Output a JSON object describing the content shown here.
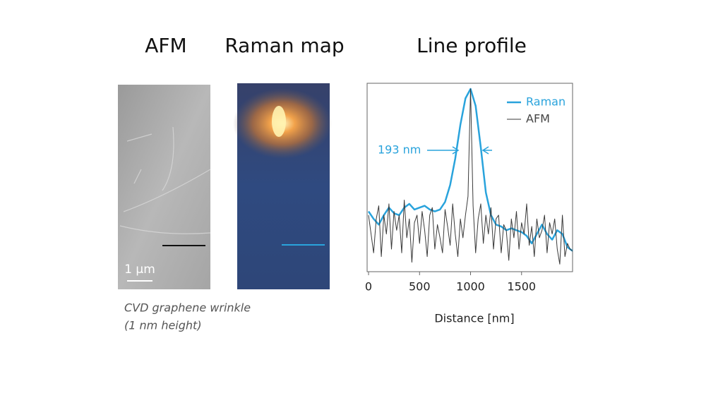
{
  "panels": {
    "afm_title": "AFM",
    "raman_title": "Raman map",
    "profile_title": "Line profile",
    "scale_bar": "1 µm",
    "caption": [
      "CVD graphene wrinkle",
      "(1 nm height)"
    ]
  },
  "chart_data": {
    "type": "line",
    "xlabel": "Distance [nm]",
    "annotation": "193 nm",
    "xlim": [
      -14,
      2000
    ],
    "ylim": [
      0,
      100
    ],
    "xticks": [
      0,
      500,
      1000,
      1500
    ],
    "series": [
      {
        "name": "Raman",
        "color": "#29a3dc",
        "x": [
          0,
          50,
          100,
          150,
          200,
          250,
          300,
          350,
          400,
          450,
          500,
          550,
          600,
          650,
          700,
          750,
          800,
          850,
          900,
          950,
          1000,
          1050,
          1100,
          1150,
          1200,
          1250,
          1300,
          1350,
          1400,
          1450,
          1500,
          1550,
          1600,
          1650,
          1700,
          1750,
          1800,
          1850,
          1900,
          1950,
          2000
        ],
        "values": [
          32,
          28,
          25,
          30,
          34,
          31,
          30,
          34,
          36,
          33,
          34,
          35,
          33,
          32,
          33,
          37,
          46,
          60,
          78,
          92,
          97,
          88,
          66,
          42,
          30,
          25,
          24,
          22,
          23,
          22,
          21,
          19,
          15,
          20,
          25,
          20,
          17,
          22,
          20,
          13,
          11
        ]
      },
      {
        "name": "AFM",
        "color": "#3a3a3a",
        "x": [
          0,
          25,
          50,
          75,
          100,
          125,
          150,
          175,
          200,
          225,
          250,
          275,
          300,
          325,
          350,
          375,
          400,
          425,
          450,
          475,
          500,
          525,
          550,
          575,
          600,
          625,
          650,
          675,
          700,
          725,
          750,
          775,
          800,
          825,
          850,
          875,
          900,
          925,
          950,
          975,
          1000,
          1025,
          1050,
          1075,
          1100,
          1125,
          1150,
          1175,
          1200,
          1225,
          1250,
          1275,
          1300,
          1325,
          1350,
          1375,
          1400,
          1425,
          1450,
          1475,
          1500,
          1525,
          1550,
          1575,
          1600,
          1625,
          1650,
          1675,
          1700,
          1725,
          1750,
          1775,
          1800,
          1825,
          1850,
          1875,
          1900,
          1925,
          1950,
          1975,
          2000
        ],
        "values": [
          30,
          20,
          10,
          28,
          35,
          8,
          30,
          20,
          36,
          12,
          32,
          22,
          30,
          10,
          38,
          18,
          28,
          5,
          26,
          30,
          15,
          32,
          22,
          8,
          30,
          34,
          12,
          25,
          18,
          10,
          33,
          24,
          14,
          36,
          20,
          8,
          28,
          18,
          30,
          40,
          97,
          35,
          10,
          28,
          36,
          15,
          30,
          20,
          34,
          12,
          28,
          30,
          10,
          25,
          22,
          6,
          28,
          18,
          32,
          12,
          26,
          20,
          36,
          14,
          24,
          8,
          28,
          18,
          22,
          30,
          10,
          26,
          20,
          28,
          12,
          4,
          30,
          8,
          15,
          12,
          11
        ]
      }
    ]
  }
}
